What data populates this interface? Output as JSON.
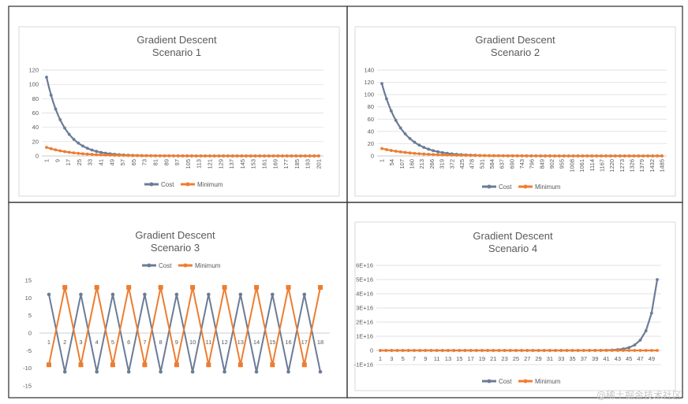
{
  "colors": {
    "cost": "#6b7c97",
    "minimum": "#ed7d31"
  },
  "watermark": "@稀土掘金技术社区",
  "chart_data": [
    {
      "type": "line",
      "title": "Gradient Descent",
      "subtitle": "Scenario 1",
      "ylim": [
        0,
        120
      ],
      "y_ticks": [
        "0",
        "20",
        "40",
        "60",
        "80",
        "100",
        "120"
      ],
      "x_tick_labels": [
        "1",
        "9",
        "17",
        "25",
        "33",
        "41",
        "49",
        "57",
        "65",
        "73",
        "81",
        "89",
        "97",
        "105",
        "113",
        "121",
        "129",
        "137",
        "145",
        "153",
        "161",
        "169",
        "177",
        "185",
        "193",
        "201"
      ],
      "x_max": 207,
      "legend": [
        "Cost",
        "Minimum"
      ],
      "legend_position": "bottom",
      "series": [
        {
          "name": "Cost",
          "start": 110,
          "end": 0,
          "decay": 0.075
        },
        {
          "name": "Minimum",
          "start": 12,
          "end": 0,
          "decay": 0.05
        }
      ]
    },
    {
      "type": "line",
      "title": "Gradient Descent",
      "subtitle": "Scenario 2",
      "ylim": [
        0,
        140
      ],
      "y_ticks": [
        "0",
        "20",
        "40",
        "60",
        "80",
        "100",
        "120",
        "140"
      ],
      "x_tick_labels": [
        "1",
        "54",
        "107",
        "160",
        "213",
        "266",
        "319",
        "372",
        "425",
        "478",
        "531",
        "584",
        "637",
        "690",
        "743",
        "796",
        "849",
        "902",
        "955",
        "1008",
        "1061",
        "1114",
        "1167",
        "1220",
        "1273",
        "1326",
        "1379",
        "1432",
        "1485"
      ],
      "x_max": 1500,
      "legend": [
        "Cost",
        "Minimum"
      ],
      "legend_position": "bottom",
      "series": [
        {
          "name": "Cost",
          "start": 118,
          "end": 0,
          "decay": 0.0095
        },
        {
          "name": "Minimum",
          "start": 12,
          "end": 0,
          "decay": 0.006
        }
      ]
    },
    {
      "type": "line",
      "title": "Gradient Descent",
      "subtitle": "Scenario 3",
      "ylim": [
        -15,
        15
      ],
      "y_ticks": [
        "-15",
        "-10",
        "-5",
        "0",
        "5",
        "10",
        "15"
      ],
      "x": [
        "1",
        "2",
        "3",
        "4",
        "5",
        "6",
        "7",
        "8",
        "9",
        "10",
        "11",
        "12",
        "13",
        "14",
        "15",
        "16",
        "17",
        "18"
      ],
      "legend": [
        "Cost",
        "Minimum"
      ],
      "legend_position": "top",
      "series": [
        {
          "name": "Cost",
          "values": [
            11,
            -11,
            11,
            -11,
            11,
            -11,
            11,
            -11,
            11,
            -11,
            11,
            -11,
            11,
            -11,
            11,
            -11,
            11,
            -11
          ]
        },
        {
          "name": "Minimum",
          "values": [
            -9,
            13,
            -9,
            13,
            -9,
            13,
            -9,
            13,
            -9,
            13,
            -9,
            13,
            -9,
            13,
            -9,
            13,
            -9,
            13
          ]
        }
      ]
    },
    {
      "type": "line",
      "title": "Gradient Descent",
      "subtitle": "Scenario 4",
      "ylim": [
        -1e+16,
        6e+16
      ],
      "y_ticks": [
        "-1E+16",
        "0",
        "1E+16",
        "2E+16",
        "3E+16",
        "4E+16",
        "5E+16",
        "6E+16"
      ],
      "x_tick_labels": [
        "1",
        "3",
        "5",
        "7",
        "9",
        "11",
        "13",
        "15",
        "17",
        "19",
        "21",
        "23",
        "25",
        "27",
        "29",
        "31",
        "33",
        "35",
        "37",
        "39",
        "41",
        "43",
        "45",
        "47",
        "49"
      ],
      "x_max": 50,
      "legend": [
        "Cost",
        "Minimum"
      ],
      "legend_position": "bottom",
      "series": [
        {
          "name": "Cost",
          "values_note": "flat at 0 until ~44 then exponential growth",
          "final": 5e+16,
          "growth_ratio": 1.9
        },
        {
          "name": "Minimum",
          "constant": 0
        }
      ]
    }
  ]
}
